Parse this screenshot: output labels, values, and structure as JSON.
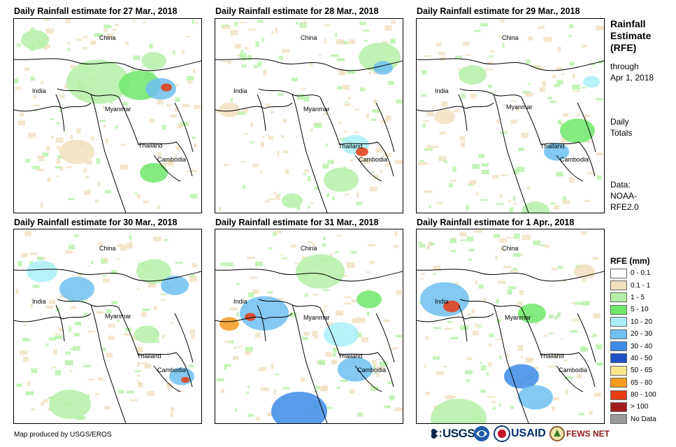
{
  "panels": [
    {
      "title": "Daily Rainfall estimate for 27 Mar., 2018",
      "labels": {
        "china": "China",
        "india": "India",
        "myanmar": "Myanmar",
        "thailand": "Thailand",
        "cambodia": "Cambodia"
      }
    },
    {
      "title": "Daily Rainfall estimate for 28 Mar., 2018",
      "labels": {
        "china": "China",
        "india": "India",
        "myanmar": "Myanmar",
        "thailand": "Thailand",
        "cambodia": "Cambodia"
      }
    },
    {
      "title": "Daily Rainfall estimate for 29 Mar., 2018",
      "labels": {
        "china": "China",
        "india": "India",
        "myanmar": "Myanmar",
        "thailand": "Thailand",
        "cambodia": "Cambodia"
      }
    },
    {
      "title": "Daily Rainfall estimate for 30 Mar., 2018",
      "labels": {
        "china": "China",
        "india": "India",
        "myanmar": "Myanmar",
        "thailand": "Thailand",
        "cambodia": "Cambodia"
      }
    },
    {
      "title": "Daily Rainfall estimate for 31 Mar., 2018",
      "labels": {
        "china": "China",
        "india": "India",
        "myanmar": "Myanmar",
        "thailand": "Thailand",
        "cambodia": "Cambodia"
      }
    },
    {
      "title": "Daily Rainfall estimate for 1 Apr., 2018",
      "labels": {
        "china": "China",
        "india": "India",
        "myanmar": "Myanmar",
        "thailand": "Thailand",
        "cambodia": "Cambodia"
      }
    }
  ],
  "sidebar": {
    "title_line1": "Rainfall",
    "title_line2": "Estimate",
    "title_line3": "(RFE)",
    "through_line1": "through",
    "through_line2": "Apr 1, 2018",
    "daily_line1": "Daily",
    "daily_line2": "Totals",
    "data_line1": "Data:",
    "data_line2": "NOAA-",
    "data_line3": "RFE2.0"
  },
  "legend": {
    "title": "RFE (mm)",
    "items": [
      {
        "label": "0 - 0.1",
        "color": "#ffffff"
      },
      {
        "label": "0.1 - 1",
        "color": "#f0e0c0"
      },
      {
        "label": "1 - 5",
        "color": "#b5f0a8"
      },
      {
        "label": "5 - 10",
        "color": "#6ee86a"
      },
      {
        "label": "10 - 20",
        "color": "#aaeef8"
      },
      {
        "label": "20 - 30",
        "color": "#6fc0f0"
      },
      {
        "label": "30 - 40",
        "color": "#3c8ce6"
      },
      {
        "label": "40 - 50",
        "color": "#1e50c8"
      },
      {
        "label": "50 - 65",
        "color": "#fae68c"
      },
      {
        "label": "65 - 80",
        "color": "#f59b1e"
      },
      {
        "label": "80 - 100",
        "color": "#e63c14"
      },
      {
        "label": "> 100",
        "color": "#a01e1e"
      },
      {
        "label": "No Data",
        "color": "#999999"
      }
    ]
  },
  "footer": {
    "credit": "Map produced by USGS/EROS",
    "logos": {
      "usgs": "USGS",
      "usaid": "USAID",
      "fewsnet": "FEWS NET"
    }
  }
}
